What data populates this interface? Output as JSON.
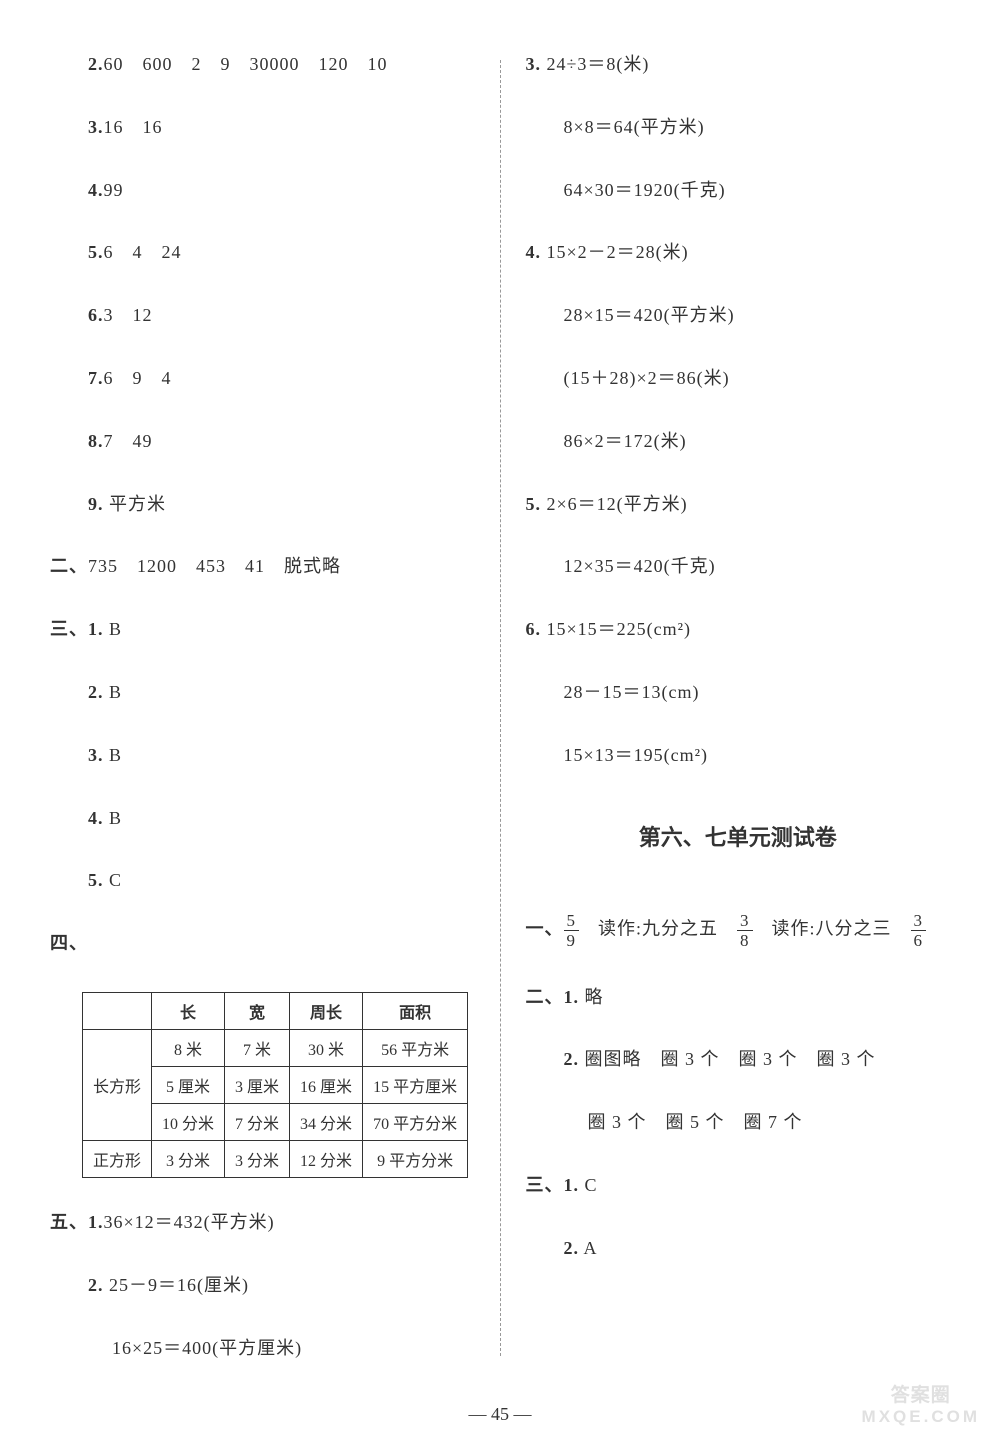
{
  "left": {
    "items": [
      {
        "num": "2.",
        "text": "60　600　2　9　30000　120　10",
        "indent": 1
      },
      {
        "num": "3.",
        "text": "16　16",
        "indent": 1
      },
      {
        "num": "4.",
        "text": "99",
        "indent": 1
      },
      {
        "num": "5.",
        "text": "6　4　24",
        "indent": 1
      },
      {
        "num": "6.",
        "text": "3　12",
        "indent": 1
      },
      {
        "num": "7.",
        "text": "6　9　4",
        "indent": 1
      },
      {
        "num": "8.",
        "text": "7　49",
        "indent": 1
      },
      {
        "num": "9.",
        "text": " 平方米",
        "indent": 1
      },
      {
        "num": "二、",
        "text": "735　1200　453　41　脱式略",
        "indent": 0
      },
      {
        "num": "三、1.",
        "text": " B",
        "indent": 0
      },
      {
        "num": "2.",
        "text": " B",
        "indent": 1
      },
      {
        "num": "3.",
        "text": " B",
        "indent": 1
      },
      {
        "num": "4.",
        "text": " B",
        "indent": 1
      },
      {
        "num": "5.",
        "text": " C",
        "indent": 1
      },
      {
        "num": "四、",
        "text": "",
        "indent": 0
      }
    ],
    "table": {
      "headers": [
        "",
        "长",
        "宽",
        "周长",
        "面积"
      ],
      "rows": [
        [
          "长方形",
          "8 米",
          "7 米",
          "30 米",
          "56 平方米"
        ],
        [
          "",
          "5 厘米",
          "3 厘米",
          "16 厘米",
          "15 平方厘米"
        ],
        [
          "",
          "10 分米",
          "7 分米",
          "34 分米",
          "70 平方分米"
        ],
        [
          "正方形",
          "3 分米",
          "3 分米",
          "12 分米",
          "9 平方分米"
        ]
      ],
      "rowspan_col0": 3
    },
    "after_table": [
      {
        "num": "五、1.",
        "text": "36×12＝432(平方米)",
        "indent": 0
      },
      {
        "num": "2.",
        "text": " 25－9＝16(厘米)",
        "indent": 1
      },
      {
        "num": "",
        "text": "16×25＝400(平方厘米)",
        "indent": 2
      }
    ]
  },
  "right": {
    "items_top": [
      {
        "num": "3.",
        "text": " 24÷3＝8(米)",
        "indent": 0
      },
      {
        "num": "",
        "text": "8×8＝64(平方米)",
        "indent": 1
      },
      {
        "num": "",
        "text": "64×30＝1920(千克)",
        "indent": 1
      },
      {
        "num": "4.",
        "text": " 15×2－2＝28(米)",
        "indent": 0
      },
      {
        "num": "",
        "text": "28×15＝420(平方米)",
        "indent": 1
      },
      {
        "num": "",
        "text": "(15＋28)×2＝86(米)",
        "indent": 1
      },
      {
        "num": "",
        "text": "86×2＝172(米)",
        "indent": 1
      },
      {
        "num": "5.",
        "text": " 2×6＝12(平方米)",
        "indent": 0
      },
      {
        "num": "",
        "text": "12×35＝420(千克)",
        "indent": 1
      },
      {
        "num": "6.",
        "text": " 15×15＝225(cm²)",
        "indent": 0
      },
      {
        "num": "",
        "text": "28－15＝13(cm)",
        "indent": 1
      },
      {
        "num": "",
        "text": "15×13＝195(cm²)",
        "indent": 1
      }
    ],
    "section_title": "第六、七单元测试卷",
    "frac_line": {
      "prefix": "一、",
      "parts": [
        {
          "n": "5",
          "d": "9",
          "after": "　读作:九分之五　"
        },
        {
          "n": "3",
          "d": "8",
          "after": "　读作:八分之三　"
        },
        {
          "n": "3",
          "d": "6",
          "after": ""
        }
      ]
    },
    "items_bot": [
      {
        "num": "二、1.",
        "text": " 略",
        "indent": 0
      },
      {
        "num": "2.",
        "text": " 圈图略　圈 3 个　圈 3 个　圈 3 个",
        "indent": 1
      },
      {
        "num": "",
        "text": "圈 3 个　圈 5 个　圈 7 个",
        "indent": 2
      },
      {
        "num": "三、1.",
        "text": " C",
        "indent": 0
      },
      {
        "num": "2.",
        "text": " A",
        "indent": 1
      }
    ]
  },
  "page_number": "— 45 —",
  "watermark": {
    "top": "答案圈",
    "bot": "MXQE.COM"
  }
}
